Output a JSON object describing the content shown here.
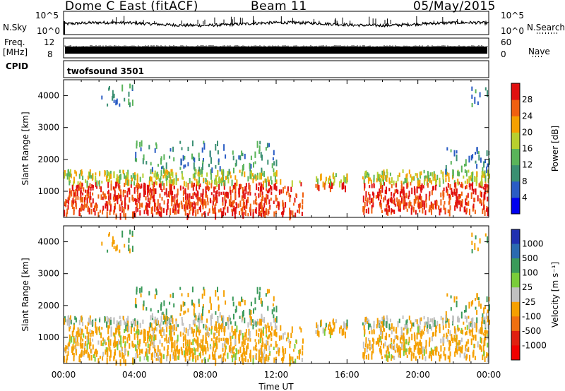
{
  "header": {
    "radar": "Dome C East (fitACF)",
    "beam": "Beam 11",
    "date": "05/May/2015"
  },
  "side_labels": {
    "nsky": "N.Sky",
    "nsearch": "N.Search",
    "freq": "Freq.",
    "freq_unit": "[MHz]",
    "nave": "Nave",
    "cpid": "CPID",
    "cpid_value": "twofsound 3501"
  },
  "chart_data": [
    {
      "type": "line",
      "name": "noise-panel",
      "ylabel_left": "N.Sky",
      "ylabel_right": "N.Search",
      "left_ticks": [
        "10^5",
        "10^0"
      ],
      "right_ticks": [
        "10^5",
        "10^0"
      ],
      "x_range_hours": [
        0,
        24
      ]
    },
    {
      "type": "line",
      "name": "frequency-panel",
      "ylabel_left": "Freq. [MHz]",
      "ylabel_right": "Nave",
      "left_ticks": [
        12,
        8
      ],
      "right_ticks": [
        60,
        0
      ],
      "x_range_hours": [
        0,
        24
      ]
    },
    {
      "type": "heatmap",
      "name": "power-panel",
      "ylabel": "Slant Range [km]",
      "yticks": [
        1000,
        2000,
        3000,
        4000
      ],
      "ylim": [
        180,
        4500
      ],
      "colorbar_label": "Power [dB]",
      "colorbar_ticks": [
        4,
        8,
        12,
        16,
        20,
        24,
        28
      ],
      "colorbar_colors": [
        "#0000ee",
        "#2a5cc4",
        "#3a8f72",
        "#5ab45a",
        "#b8cf2e",
        "#f5a000",
        "#f06010",
        "#e01010"
      ]
    },
    {
      "type": "heatmap",
      "name": "velocity-panel",
      "ylabel": "Slant Range [km]",
      "yticks": [
        1000,
        2000,
        3000,
        4000
      ],
      "ylim": [
        180,
        4500
      ],
      "colorbar_label": "Velocity [m s⁻¹]",
      "colorbar_ticks": [
        "1000",
        "500",
        "100",
        "25",
        "-25",
        "-100",
        "-500",
        "-1000"
      ],
      "colorbar_colors": [
        "#2030b0",
        "#2a6ab0",
        "#3a9a5a",
        "#7acc3a",
        "#c0c0c0",
        "#f5a000",
        "#f07010",
        "#e02010",
        "#f00000"
      ]
    }
  ],
  "x_axis": {
    "label": "Time UT",
    "ticks": [
      "00:00",
      "04:00",
      "08:00",
      "12:00",
      "16:00",
      "20:00",
      "00:00"
    ]
  }
}
